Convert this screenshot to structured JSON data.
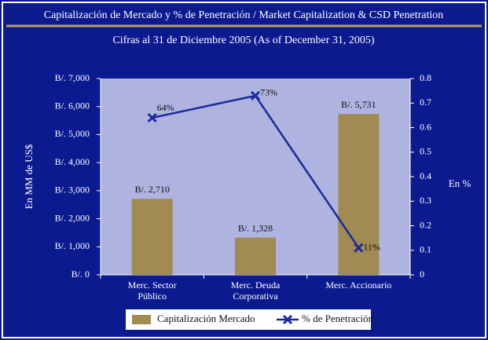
{
  "chart_data": {
    "type": "bar_line",
    "title": "Capitalización de Mercado y % de Penetración / Market Capitalization & CSD Penetration",
    "subtitle": "Cifras al 31 de Diciembre 2005 (As of December 31, 2005)",
    "ylabel": "En MM de US$",
    "y2label": "En %",
    "categories": [
      "Merc. Sector Público",
      "Merc. Deuda Corporativa",
      "Merc. Accionario"
    ],
    "series": [
      {
        "name": "Capitalización Mercado",
        "color": "#a08c52",
        "type": "bar",
        "values": [
          2710,
          1328,
          5731
        ],
        "value_labels": [
          "B/. 2,710",
          "B/. 1,328",
          "B/. 5,731"
        ]
      },
      {
        "name": "% de Penetración",
        "color": "#1c2a9e",
        "type": "line",
        "axis": "y2",
        "values": [
          0.64,
          0.73,
          0.11
        ],
        "value_labels": [
          "64%",
          "73%",
          "11%"
        ]
      }
    ],
    "ylim": [
      0,
      7000
    ],
    "yticks": [
      {
        "value": 0,
        "label": "B/. 0"
      },
      {
        "value": 1000,
        "label": "B/. 1,000"
      },
      {
        "value": 2000,
        "label": "B/. 2,000"
      },
      {
        "value": 3000,
        "label": "B/. 3,000"
      },
      {
        "value": 4000,
        "label": "B/. 4,000"
      },
      {
        "value": 5000,
        "label": "B/. 5,000"
      },
      {
        "value": 6000,
        "label": "B/. 6,000"
      },
      {
        "value": 7000,
        "label": "B/. 7,000"
      }
    ],
    "y2lim": [
      0,
      0.8
    ],
    "y2ticks": [
      0,
      0.1,
      0.2,
      0.3,
      0.4,
      0.5,
      0.6,
      0.7,
      0.8
    ],
    "legend": "bottom"
  }
}
